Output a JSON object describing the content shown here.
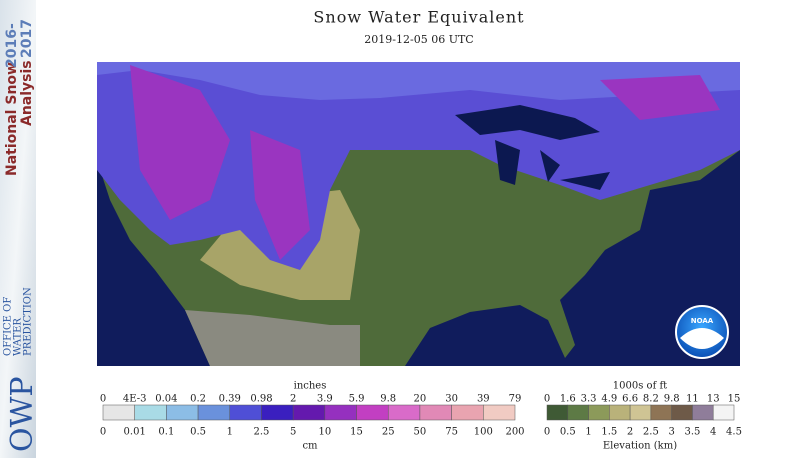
{
  "sidebar": {
    "product_line1": "National Snow",
    "product_year1": "2016-",
    "product_line2": "Analysis",
    "product_year2": "2017",
    "office": [
      "OFFICE OF",
      "WATER",
      "PREDICTION"
    ],
    "logo": "OWP"
  },
  "header": {
    "title": "Snow Water Equivalent",
    "subtitle": "2019-12-05 06 UTC"
  },
  "map": {
    "logo": "NOAA"
  },
  "legend": {
    "snow": {
      "top_unit": "inches",
      "bottom_unit": "cm",
      "inches": [
        0,
        "4E-3",
        0.04,
        0.2,
        0.39,
        0.98,
        2,
        3.9,
        5.9,
        9.8,
        20,
        30,
        39,
        79
      ],
      "cm": [
        0,
        0.01,
        0.1,
        0.5,
        1,
        2.5,
        5,
        10,
        15,
        25,
        50,
        75,
        100,
        200
      ],
      "colors": [
        "#e6e6e6",
        "#a9dbe6",
        "#8cbde6",
        "#6a91dc",
        "#4f4fd6",
        "#3a1fbf",
        "#6419ae",
        "#9530bf",
        "#c23fc2",
        "#d96bc9",
        "#e189b6",
        "#e9a4b0",
        "#f1cbc3"
      ]
    },
    "elevation": {
      "top_unit": "1000s of ft",
      "bottom_unit": "Elevation (km)",
      "ft": [
        0,
        1.6,
        3.3,
        4.9,
        6.6,
        8.2,
        9.8,
        11,
        13,
        15
      ],
      "km": [
        0,
        0.5,
        1,
        1.5,
        2,
        2.5,
        3,
        3.5,
        4,
        4.5
      ],
      "colors": [
        "#3f5a35",
        "#5d7a45",
        "#8c9a5a",
        "#b9b27a",
        "#cfc494",
        "#8e7455",
        "#6e5a48",
        "#8f7d9a",
        "#f4f4f4"
      ]
    }
  }
}
